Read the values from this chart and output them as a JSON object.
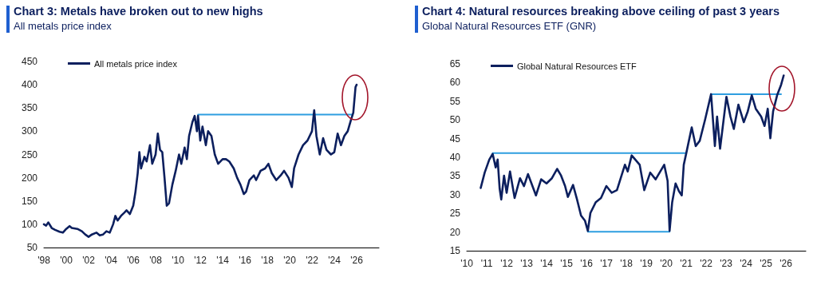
{
  "chart_data": [
    {
      "type": "line",
      "title": "Chart 3: Metals have broken out to new highs",
      "subtitle": "All metals price index",
      "legend": "top left",
      "marker": "none",
      "line_style": "solid",
      "xlim": [
        1998,
        2028
      ],
      "xticks": [
        {
          "value": 1998,
          "label": "'98"
        },
        {
          "value": 2000,
          "label": "'00"
        },
        {
          "value": 2002,
          "label": "'02"
        },
        {
          "value": 2004,
          "label": "'04"
        },
        {
          "value": 2006,
          "label": "'06"
        },
        {
          "value": 2008,
          "label": "'08"
        },
        {
          "value": 2010,
          "label": "'10"
        },
        {
          "value": 2012,
          "label": "'12"
        },
        {
          "value": 2014,
          "label": "'14"
        },
        {
          "value": 2016,
          "label": "'16"
        },
        {
          "value": 2018,
          "label": "'18"
        },
        {
          "value": 2020,
          "label": "'20"
        },
        {
          "value": 2022,
          "label": "'22"
        },
        {
          "value": 2024,
          "label": "'24"
        },
        {
          "value": 2026,
          "label": "'26"
        }
      ],
      "ylim": [
        50,
        450
      ],
      "yticks": [
        50,
        100,
        150,
        200,
        250,
        300,
        350,
        400,
        450
      ],
      "series": [
        {
          "name": "All metals price index",
          "color": "#0c1f5e",
          "x": [
            1998.0,
            1998.2,
            1998.4,
            1998.7,
            1999.0,
            1999.4,
            1999.7,
            2000.0,
            2000.3,
            2000.5,
            2001.0,
            2001.4,
            2001.7,
            2002.0,
            2002.3,
            2002.7,
            2003.0,
            2003.3,
            2003.6,
            2003.9,
            2004.2,
            2004.4,
            2004.6,
            2004.9,
            2005.2,
            2005.4,
            2005.7,
            2006.0,
            2006.2,
            2006.4,
            2006.55,
            2006.7,
            2007.0,
            2007.2,
            2007.5,
            2007.7,
            2008.0,
            2008.2,
            2008.4,
            2008.6,
            2008.8,
            2009.0,
            2009.2,
            2009.5,
            2009.8,
            2010.1,
            2010.3,
            2010.6,
            2010.8,
            2011.0,
            2011.3,
            2011.5,
            2011.7,
            2011.8,
            2012.0,
            2012.2,
            2012.5,
            2012.7,
            2013.0,
            2013.3,
            2013.6,
            2014.0,
            2014.3,
            2014.6,
            2015.0,
            2015.3,
            2015.6,
            2015.9,
            2016.1,
            2016.4,
            2016.8,
            2017.0,
            2017.4,
            2017.8,
            2018.1,
            2018.4,
            2018.8,
            2019.2,
            2019.5,
            2019.9,
            2020.2,
            2020.4,
            2020.8,
            2021.2,
            2021.6,
            2022.0,
            2022.2,
            2022.4,
            2022.7,
            2023.0,
            2023.3,
            2023.7,
            2024.0,
            2024.3,
            2024.6,
            2024.9,
            2025.2,
            2025.5,
            2025.7,
            2025.9,
            2026.0
          ],
          "values": [
            100,
            97,
            104,
            92,
            88,
            84,
            82,
            90,
            96,
            92,
            90,
            85,
            78,
            73,
            78,
            82,
            76,
            78,
            85,
            82,
            100,
            118,
            108,
            118,
            125,
            130,
            122,
            140,
            170,
            210,
            255,
            220,
            245,
            235,
            270,
            230,
            250,
            295,
            260,
            255,
            200,
            140,
            145,
            185,
            215,
            250,
            230,
            265,
            240,
            290,
            320,
            333,
            300,
            333,
            280,
            310,
            270,
            300,
            290,
            250,
            230,
            240,
            240,
            235,
            220,
            200,
            185,
            165,
            170,
            195,
            205,
            195,
            215,
            220,
            230,
            210,
            195,
            205,
            215,
            200,
            180,
            220,
            250,
            270,
            280,
            300,
            345,
            290,
            250,
            285,
            260,
            250,
            255,
            295,
            270,
            290,
            300,
            325,
            340,
            395,
            400
          ]
        },
        {
          "color": "#2e9ee0",
          "x": [
            2011.8,
            2025.6
          ],
          "values": [
            336,
            336
          ]
        }
      ]
    },
    {
      "type": "line",
      "title": "Chart 4: Natural resources breaking above ceiling of past 3 years",
      "subtitle": "Global Natural Resources ETF (GNR)",
      "legend": "top left",
      "marker": "none",
      "line_style": "solid",
      "xlim": [
        2010,
        2027
      ],
      "xticks": [
        {
          "value": 2010,
          "label": "'10"
        },
        {
          "value": 2011,
          "label": "'11"
        },
        {
          "value": 2012,
          "label": "'12"
        },
        {
          "value": 2013,
          "label": "'13"
        },
        {
          "value": 2014,
          "label": "'14"
        },
        {
          "value": 2015,
          "label": "'15"
        },
        {
          "value": 2016,
          "label": "'16"
        },
        {
          "value": 2017,
          "label": "'17"
        },
        {
          "value": 2018,
          "label": "'18"
        },
        {
          "value": 2019,
          "label": "'19"
        },
        {
          "value": 2020,
          "label": "'20"
        },
        {
          "value": 2021,
          "label": "'21"
        },
        {
          "value": 2022,
          "label": "'22"
        },
        {
          "value": 2023,
          "label": "'23"
        },
        {
          "value": 2024,
          "label": "'24"
        },
        {
          "value": 2025,
          "label": "'25"
        },
        {
          "value": 2026,
          "label": "'26"
        }
      ],
      "ylim": [
        15,
        65
      ],
      "yticks": [
        15,
        20,
        25,
        30,
        35,
        40,
        45,
        50,
        55,
        60,
        65
      ],
      "series": [
        {
          "name": "Global Natural Resources ETF",
          "color": "#0c1f5e",
          "x": [
            2010.7,
            2010.9,
            2011.13,
            2011.3,
            2011.45,
            2011.55,
            2011.65,
            2011.73,
            2011.87,
            2012.0,
            2012.17,
            2012.4,
            2012.67,
            2012.87,
            2013.07,
            2013.47,
            2013.73,
            2014.0,
            2014.27,
            2014.53,
            2014.73,
            2014.93,
            2015.07,
            2015.33,
            2015.53,
            2015.73,
            2015.93,
            2016.07,
            2016.2,
            2016.47,
            2016.73,
            2017.0,
            2017.27,
            2017.53,
            2017.93,
            2018.07,
            2018.27,
            2018.67,
            2018.9,
            2019.2,
            2019.47,
            2019.9,
            2020.07,
            2020.17,
            2020.3,
            2020.47,
            2020.64,
            2020.78,
            2020.88,
            2021.01,
            2021.28,
            2021.48,
            2021.68,
            2021.95,
            2022.25,
            2022.44,
            2022.55,
            2022.7,
            2023.02,
            2023.22,
            2023.39,
            2023.62,
            2023.89,
            2024.09,
            2024.29,
            2024.49,
            2024.76,
            2024.93,
            2025.09,
            2025.22,
            2025.36,
            2025.56,
            2025.76,
            2025.89
          ],
          "values": [
            31.8,
            35.9,
            39.4,
            40.9,
            37.3,
            39.4,
            31.6,
            28.7,
            35.1,
            30.5,
            36.2,
            29.1,
            34.4,
            32.3,
            35.5,
            29.8,
            34.1,
            33,
            34.4,
            36.9,
            35.1,
            32.3,
            29.4,
            32.6,
            28.7,
            24.4,
            23,
            20.3,
            25.1,
            28,
            29.1,
            32.3,
            30.5,
            31.2,
            38,
            36.2,
            40.5,
            38,
            31.2,
            35.9,
            34.1,
            38,
            33.7,
            20.3,
            28,
            33,
            30.9,
            29.8,
            38,
            41.2,
            48,
            43,
            44.4,
            50.1,
            56.9,
            43,
            50.9,
            42.3,
            56.2,
            50.9,
            47.6,
            54.1,
            49.4,
            52.3,
            56.6,
            53,
            50.9,
            48.4,
            53,
            45.1,
            52.3,
            56.6,
            59.4,
            61.9
          ]
        },
        {
          "color": "#2e9ee0",
          "x": [
            2011.3,
            2020.94
          ],
          "values": [
            41.1,
            41.1
          ]
        },
        {
          "color": "#2e9ee0",
          "x": [
            2016.07,
            2020.17
          ],
          "values": [
            20.1,
            20.1
          ]
        },
        {
          "color": "#2e9ee0",
          "x": [
            2022.25,
            2025.76
          ],
          "values": [
            56.9,
            56.9
          ]
        }
      ]
    }
  ]
}
